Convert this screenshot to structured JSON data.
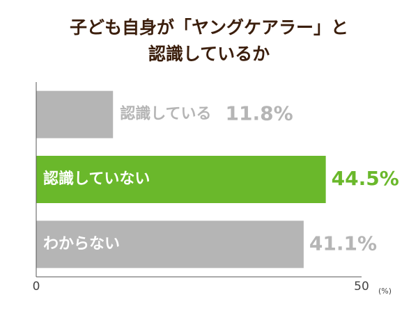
{
  "chart_data": {
    "type": "barh",
    "title": [
      "子ども自身が「ヤングケアラー」と",
      "認識しているか"
    ],
    "categories": [
      "認識している",
      "認識していない",
      "わからない"
    ],
    "values": [
      11.8,
      44.5,
      41.1
    ],
    "value_labels": [
      "11.8%",
      "44.5%",
      "41.1%"
    ],
    "colors": [
      "#b5b5b5",
      "#6ab82b",
      "#b5b5b5"
    ],
    "xlim": [
      0,
      50
    ],
    "xticks": [
      0,
      50
    ],
    "x_unit": "(%)"
  }
}
